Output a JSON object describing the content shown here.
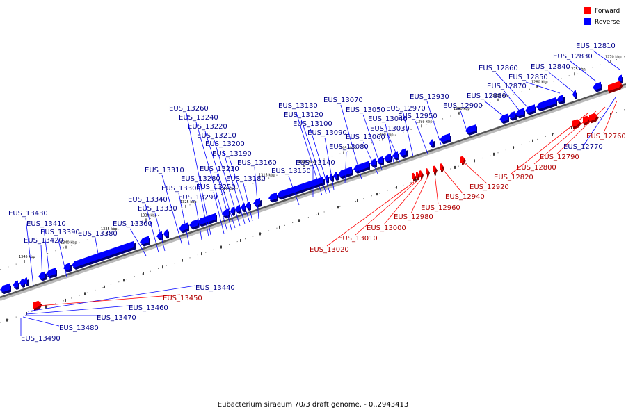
{
  "caption": "Eubacterium siraeum 70/3 draft genome. - 0..2943413",
  "legend": [
    {
      "label": "Forward",
      "color": "#ff0000"
    },
    {
      "label": "Reverse",
      "color": "#0000ff"
    }
  ],
  "kbp_ticks": [
    "1270 kbp",
    "1275 kbp",
    "1280 kbp",
    "1285 kbp",
    "1290 kbp",
    "1295 kbp",
    "1300 kbp",
    "1305 kbp",
    "1310 kbp",
    "1315 kbp",
    "1320 kbp",
    "1325 kbp",
    "1330 kbp",
    "1335 kbp",
    "1340 kbp",
    "1345 kbp"
  ],
  "genes": {
    "reverse": [
      "EUS_12810",
      "EUS_12830",
      "EUS_12840",
      "EUS_12850",
      "EUS_12860",
      "EUS_12870",
      "EUS_12880",
      "EUS_12900",
      "EUS_12930",
      "EUS_12950",
      "EUS_12970",
      "EUS_13030",
      "EUS_13040",
      "EUS_13050",
      "EUS_13060",
      "EUS_13070",
      "EUS_13080",
      "EUS_13090",
      "EUS_13100",
      "EUS_13120",
      "EUS_13130",
      "EUS_13140",
      "EUS_13150",
      "EUS_13160",
      "EUS_13180",
      "EUS_13190",
      "EUS_13200",
      "EUS_13210",
      "EUS_13220",
      "EUS_13230",
      "EUS_13240",
      "EUS_13250",
      "EUS_13260",
      "EUS_13280",
      "EUS_13290",
      "EUS_13300",
      "EUS_13310",
      "EUS_13330",
      "EUS_13340",
      "EUS_13360",
      "EUS_13380",
      "EUS_13390",
      "EUS_13410",
      "EUS_13420",
      "EUS_13430",
      "EUS_12770",
      "EUS_13440",
      "EUS_13460",
      "EUS_13470",
      "EUS_13480",
      "EUS_13490"
    ],
    "forward": [
      "EUS_12760",
      "EUS_12790",
      "EUS_12800",
      "EUS_12820",
      "EUS_12920",
      "EUS_12940",
      "EUS_12960",
      "EUS_12980",
      "EUS_13000",
      "EUS_13010",
      "EUS_13020",
      "EUS_13450"
    ]
  }
}
